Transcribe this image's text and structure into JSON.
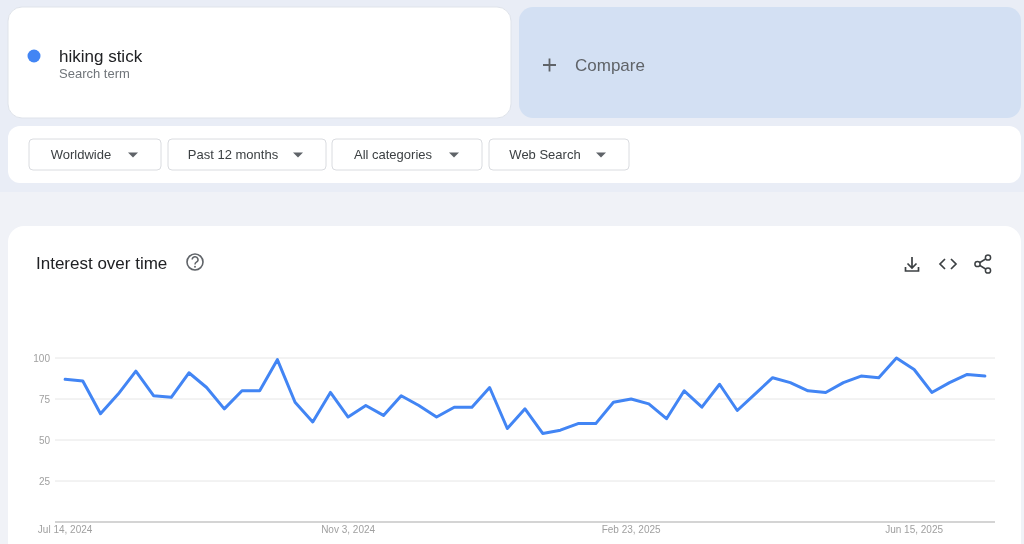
{
  "chart_data": {
    "type": "line",
    "title": "Interest over time",
    "annotations": [
      "Search term",
      "Compare",
      "Worldwide",
      "Past 12 months",
      "All categories",
      "Web Search"
    ],
    "x": [
      "2024-07-14",
      "2024-07-21",
      "2024-07-28",
      "2024-08-04",
      "2024-08-11",
      "2024-08-18",
      "2024-08-25",
      "2024-09-01",
      "2024-09-08",
      "2024-09-15",
      "2024-09-22",
      "2024-09-29",
      "2024-10-06",
      "2024-10-13",
      "2024-10-20",
      "2024-10-27",
      "2024-11-03",
      "2024-11-10",
      "2024-11-17",
      "2024-11-24",
      "2024-12-01",
      "2024-12-08",
      "2024-12-15",
      "2024-12-22",
      "2024-12-29",
      "2025-01-05",
      "2025-01-12",
      "2025-01-19",
      "2025-01-26",
      "2025-02-02",
      "2025-02-09",
      "2025-02-16",
      "2025-02-23",
      "2025-03-02",
      "2025-03-09",
      "2025-03-16",
      "2025-03-23",
      "2025-03-30",
      "2025-04-06",
      "2025-04-13",
      "2025-04-20",
      "2025-04-27",
      "2025-05-04",
      "2025-05-11",
      "2025-05-18",
      "2025-05-25",
      "2025-06-01",
      "2025-06-08",
      "2025-06-15",
      "2025-06-22",
      "2025-06-29",
      "2025-07-06",
      "2025-07-13"
    ],
    "series": [
      {
        "name": "hiking stick",
        "color": "#4285f4",
        "values": [
          87,
          86,
          66,
          78,
          92,
          77,
          76,
          91,
          82,
          69,
          80,
          80,
          99,
          73,
          61,
          79,
          64,
          71,
          65,
          77,
          71,
          64,
          70,
          70,
          82,
          57,
          69,
          54,
          56,
          60,
          60,
          73,
          75,
          72,
          63,
          80,
          70,
          84,
          68,
          78,
          88,
          85,
          80,
          79,
          85,
          89,
          88,
          100,
          93,
          79,
          85,
          90,
          89
        ]
      }
    ],
    "xlim": [
      "2024-07-10",
      "2025-07-17"
    ],
    "xticks": [
      {
        "value": "2024-07-14",
        "label": "Jul 14, 2024"
      },
      {
        "value": "2024-11-03",
        "label": "Nov 3, 2024"
      },
      {
        "value": "2025-02-23",
        "label": "Feb 23, 2025"
      },
      {
        "value": "2025-06-15",
        "label": "Jun 15, 2025"
      }
    ],
    "ylim": [
      0,
      100
    ],
    "yticks": [
      25,
      50,
      75,
      100
    ],
    "grid": "y",
    "legend": "top left"
  }
}
